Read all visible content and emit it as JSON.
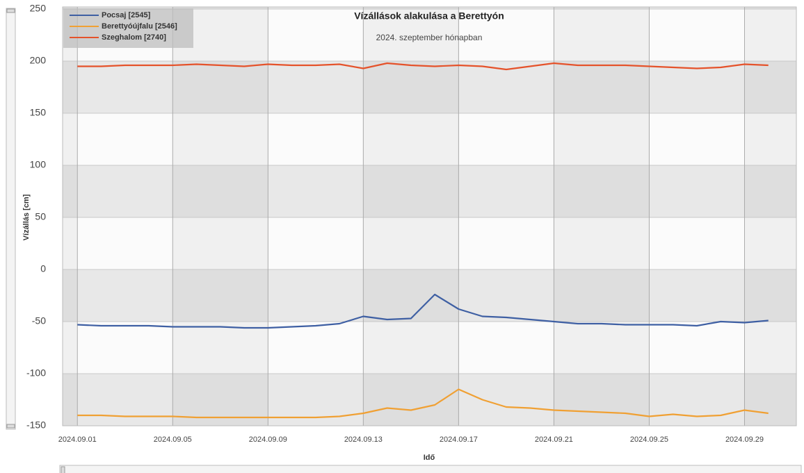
{
  "chart_data": {
    "type": "line",
    "title": "Vízállások alakulása a Berettyón",
    "subtitle": "2024. szeptember hónapban",
    "x_label": "Idő",
    "y_label": "Vízállás [cm]",
    "x": [
      "2024.09.01",
      "2024.09.02",
      "2024.09.03",
      "2024.09.04",
      "2024.09.05",
      "2024.09.06",
      "2024.09.07",
      "2024.09.08",
      "2024.09.09",
      "2024.09.10",
      "2024.09.11",
      "2024.09.12",
      "2024.09.13",
      "2024.09.14",
      "2024.09.15",
      "2024.09.16",
      "2024.09.17",
      "2024.09.18",
      "2024.09.19",
      "2024.09.20",
      "2024.09.21",
      "2024.09.22",
      "2024.09.23",
      "2024.09.24",
      "2024.09.25",
      "2024.09.26",
      "2024.09.27",
      "2024.09.28",
      "2024.09.29",
      "2024.09.30"
    ],
    "series": [
      {
        "name": "Pocsaj [2545]",
        "color": "#3e5fa3",
        "values": [
          -53,
          -54,
          -54,
          -54,
          -55,
          -55,
          -55,
          -56,
          -56,
          -55,
          -54,
          -52,
          -45,
          -48,
          -47,
          -24,
          -38,
          -45,
          -46,
          -48,
          -50,
          -52,
          -52,
          -53,
          -53,
          -53,
          -54,
          -50,
          -51,
          -49
        ]
      },
      {
        "name": "Berettyóújfalu [2546]",
        "color": "#f0a033",
        "values": [
          -140,
          -140,
          -141,
          -141,
          -141,
          -142,
          -142,
          -142,
          -142,
          -142,
          -142,
          -141,
          -138,
          -133,
          -135,
          -130,
          -115,
          -125,
          -132,
          -133,
          -135,
          -136,
          -137,
          -138,
          -141,
          -139,
          -141,
          -140,
          -135,
          -138
        ]
      },
      {
        "name": "Szeghalom [2740]",
        "color": "#e5522a",
        "values": [
          195,
          195,
          196,
          196,
          196,
          197,
          196,
          195,
          197,
          196,
          196,
          197,
          193,
          198,
          196,
          195,
          196,
          195,
          192,
          195,
          198,
          196,
          196,
          196,
          195,
          194,
          193,
          194,
          197,
          196
        ]
      }
    ],
    "xlim": [
      "2024.08.31",
      "2024.10.01"
    ],
    "xticks": [
      "2024.09.01",
      "2024.09.05",
      "2024.09.09",
      "2024.09.13",
      "2024.09.17",
      "2024.09.21",
      "2024.09.25",
      "2024.09.29"
    ],
    "ylim": [
      -150,
      250
    ],
    "yticks": [
      -150,
      -100,
      -50,
      0,
      50,
      100,
      150,
      200,
      250
    ],
    "grid": true,
    "legend": "top-left"
  }
}
